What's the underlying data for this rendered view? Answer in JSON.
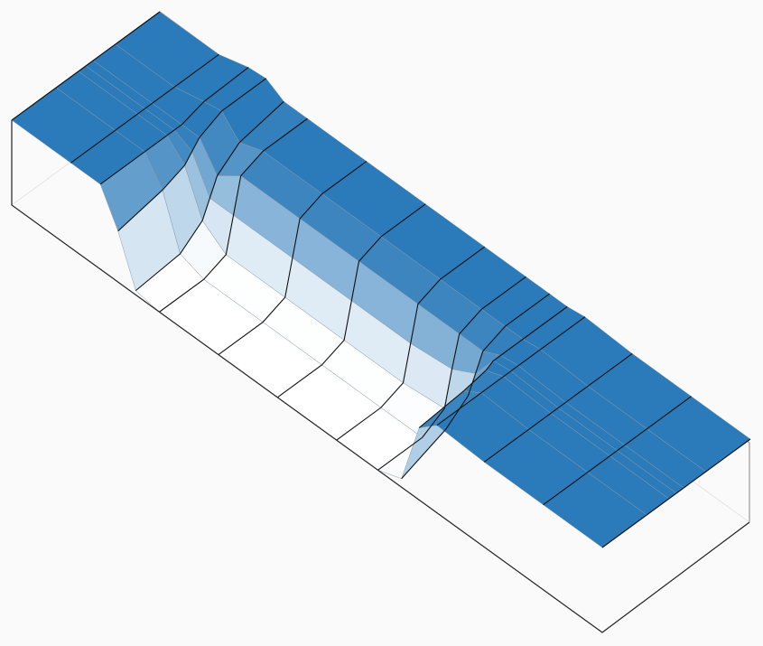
{
  "chart_data": {
    "type": "surface",
    "color": "#2b7bba",
    "x": [
      0,
      0.1,
      0.15,
      0.18,
      0.21,
      0.25,
      0.35,
      0.45,
      0.55,
      0.62,
      0.66,
      0.69,
      0.72,
      0.8,
      0.9,
      1
    ],
    "y": [
      0,
      0.3,
      0.45,
      0.5,
      0.55,
      0.7,
      1
    ],
    "zlim": [
      0,
      1
    ],
    "values": [
      [
        1,
        1,
        1,
        1,
        1,
        1,
        1
      ],
      [
        1,
        1,
        1,
        1,
        1,
        1,
        1
      ],
      [
        1,
        1,
        1,
        1,
        1,
        1.08,
        1.1
      ],
      [
        0.6,
        0.7,
        0.8,
        0.9,
        1,
        1.12,
        1.12
      ],
      [
        0.05,
        0.1,
        0.3,
        0.5,
        0.7,
        0.9,
        1
      ],
      [
        0,
        0,
        0.1,
        0.5,
        0.9,
        1,
        1
      ],
      [
        0,
        0,
        0.1,
        0.5,
        0.9,
        1,
        1
      ],
      [
        0,
        0,
        0.1,
        0.5,
        0.9,
        1,
        1
      ],
      [
        0,
        0,
        0.1,
        0.5,
        0.9,
        1,
        1
      ],
      [
        0,
        0,
        0.15,
        0.55,
        0.9,
        1,
        1
      ],
      [
        0.1,
        0.3,
        0.5,
        0.7,
        0.9,
        1,
        1
      ],
      [
        0.85,
        0.9,
        0.95,
        1,
        1,
        1,
        1
      ],
      [
        1.03,
        1.03,
        1.03,
        1.03,
        1.03,
        1.03,
        1.03
      ],
      [
        1,
        1,
        1,
        1,
        1,
        1,
        1
      ],
      [
        1,
        1,
        1,
        1,
        1,
        1,
        1
      ],
      [
        1,
        1,
        1,
        1,
        1,
        1,
        1
      ]
    ]
  }
}
